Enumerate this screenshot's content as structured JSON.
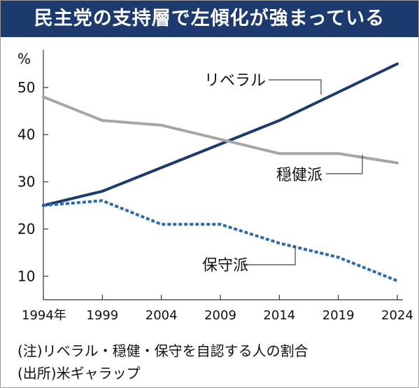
{
  "title": "民主党の支持層で左傾化が強まっている",
  "chart_data": {
    "type": "line",
    "x": [
      1994,
      1999,
      2004,
      2009,
      2014,
      2019,
      2024
    ],
    "x_tick_labels": [
      "1994年",
      "1999",
      "2004",
      "2009",
      "2014",
      "2019",
      "2024"
    ],
    "y_unit": "%",
    "y_ticks": [
      10,
      20,
      30,
      40,
      50
    ],
    "ylim": [
      5,
      58
    ],
    "grid": false,
    "series": [
      {
        "name": "リベラル",
        "values": [
          25,
          28,
          33,
          38,
          43,
          49,
          55
        ],
        "color": "#1d3a6e",
        "style": "solid"
      },
      {
        "name": "穏健派",
        "values": [
          48,
          43,
          42,
          39,
          36,
          36,
          34
        ],
        "color": "#a6a6a6",
        "style": "solid"
      },
      {
        "name": "保守派",
        "values": [
          25,
          26,
          21,
          21,
          17,
          14,
          9
        ],
        "color": "#2b6aad",
        "style": "dotted"
      }
    ]
  },
  "notes": {
    "note": "(注)リベラル・穏健・保守を自認する人の割合",
    "source": "(出所)米ギャラップ"
  }
}
